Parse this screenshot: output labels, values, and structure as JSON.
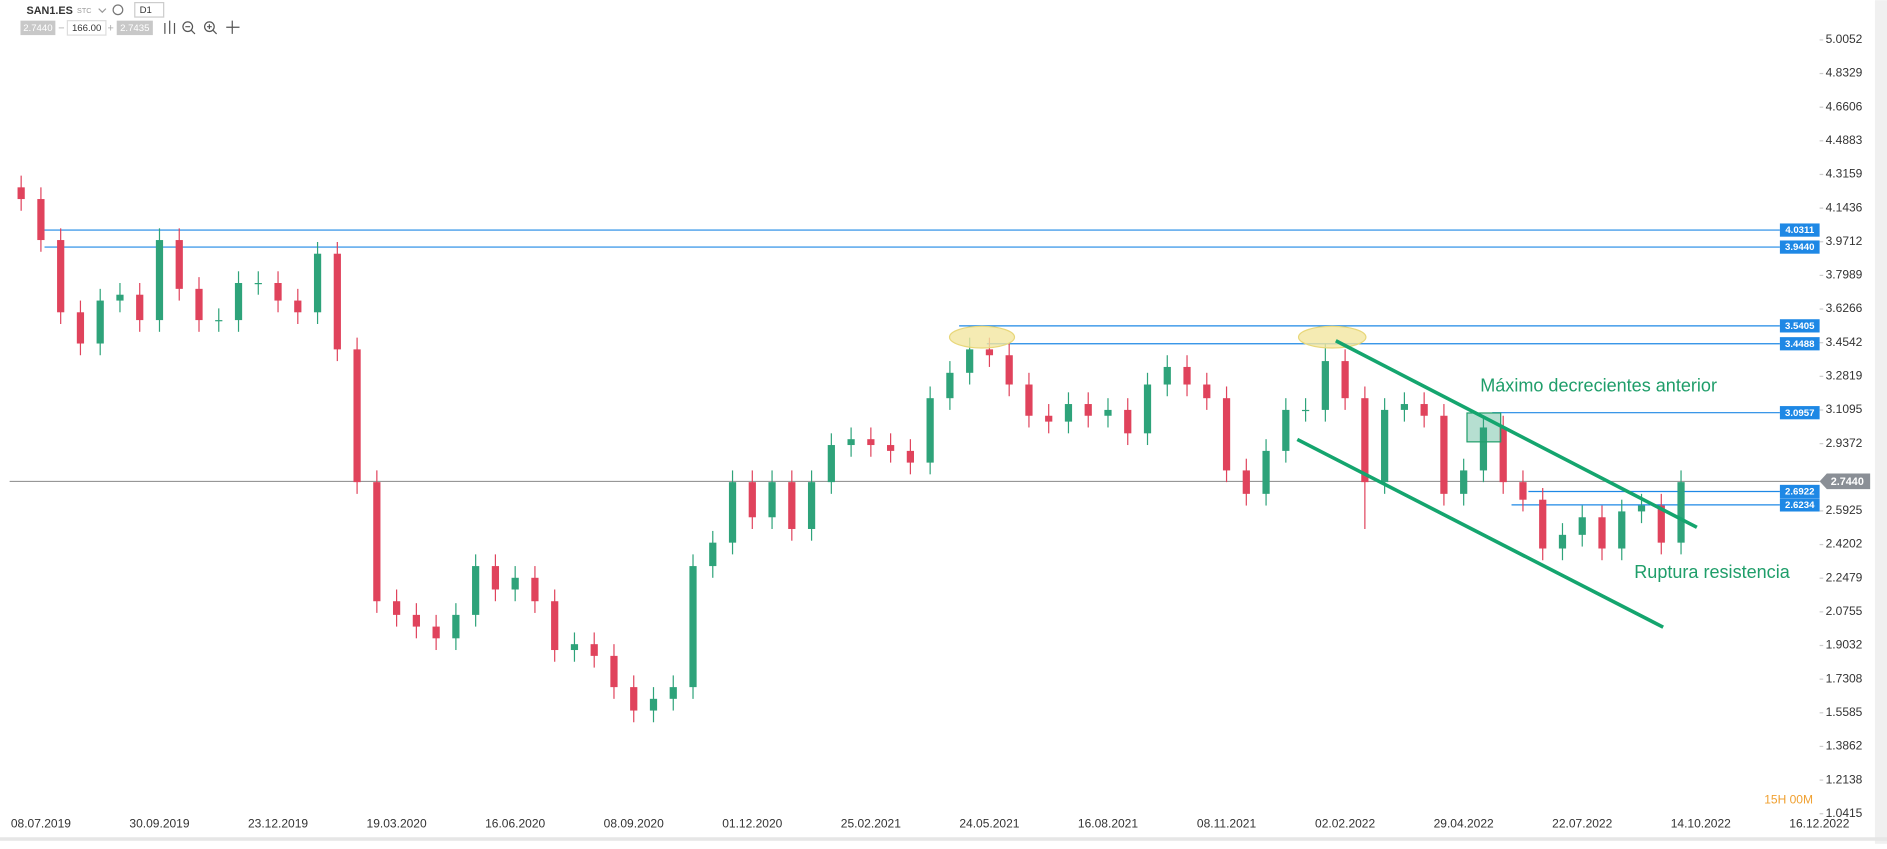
{
  "toolbar": {
    "symbol": "SAN1.ES",
    "market": "STC",
    "interval": "D1",
    "sell": "2.7440",
    "volume": "166.00",
    "buy": "2.7435",
    "countdown": "15H 00M"
  },
  "chart_data": {
    "type": "candlestick",
    "categories": [
      null,
      "08.07.2019",
      null,
      null,
      null,
      null,
      null,
      "30.09.2019",
      null,
      null,
      null,
      null,
      null,
      "23.12.2019",
      null,
      null,
      null,
      null,
      null,
      "19.03.2020",
      null,
      null,
      null,
      null,
      null,
      "16.06.2020",
      null,
      null,
      null,
      null,
      null,
      "08.09.2020",
      null,
      null,
      null,
      null,
      null,
      "01.12.2020",
      null,
      null,
      null,
      null,
      null,
      "25.02.2021",
      null,
      null,
      null,
      null,
      null,
      "24.05.2021",
      null,
      null,
      null,
      null,
      null,
      "16.08.2021",
      null,
      null,
      null,
      null,
      null,
      "08.11.2021",
      null,
      null,
      null,
      null,
      null,
      "02.02.2022",
      null,
      null,
      null,
      null,
      null,
      "29.04.2022",
      null,
      null,
      null,
      null,
      null,
      "22.07.2022",
      null,
      null,
      null,
      null,
      null,
      "14.10.2022",
      null,
      null,
      null,
      null,
      null,
      "16.12.2022"
    ],
    "open": [
      4.25,
      4.19,
      3.98,
      3.61,
      3.45,
      3.67,
      3.7,
      3.57,
      3.98,
      3.73,
      3.57,
      3.57,
      3.76,
      3.76,
      3.67,
      3.61,
      3.91,
      3.42,
      2.74,
      2.13,
      2.06,
      2.0,
      1.94,
      2.06,
      2.31,
      2.19,
      2.25,
      2.13,
      1.88,
      1.91,
      1.85,
      1.69,
      1.57,
      1.63,
      1.69,
      2.31,
      2.43,
      2.74,
      2.56,
      2.74,
      2.5,
      2.74,
      2.93,
      2.96,
      2.93,
      2.9,
      2.84,
      3.17,
      3.3,
      3.42,
      3.39,
      3.24,
      3.08,
      3.05,
      3.14,
      3.08,
      3.11,
      2.99,
      3.24,
      3.33,
      3.24,
      3.17,
      2.8,
      2.68,
      2.9,
      3.11,
      3.11,
      3.36,
      3.17,
      2.74,
      3.11,
      3.14,
      3.08,
      2.68,
      2.8,
      3.02,
      2.74,
      2.65,
      2.4,
      2.47,
      2.56,
      2.4,
      2.59,
      2.62,
      2.43,
      null,
      null,
      null,
      null,
      null,
      null,
      null
    ],
    "high": [
      4.31,
      4.25,
      4.04,
      3.67,
      3.73,
      3.76,
      3.76,
      4.04,
      4.04,
      3.79,
      3.63,
      3.82,
      3.82,
      3.82,
      3.73,
      3.97,
      3.97,
      3.48,
      2.8,
      2.19,
      2.12,
      2.06,
      2.12,
      2.37,
      2.37,
      2.31,
      2.31,
      2.19,
      1.97,
      1.97,
      1.91,
      1.75,
      1.69,
      1.75,
      2.37,
      2.49,
      2.8,
      2.8,
      2.8,
      2.8,
      2.8,
      2.99,
      3.02,
      3.02,
      2.99,
      2.96,
      3.23,
      3.36,
      3.48,
      3.48,
      3.45,
      3.3,
      3.14,
      3.2,
      3.2,
      3.17,
      3.17,
      3.3,
      3.39,
      3.39,
      3.3,
      3.23,
      2.86,
      2.96,
      3.17,
      3.17,
      3.45,
      3.42,
      3.23,
      3.17,
      3.2,
      3.2,
      3.14,
      2.86,
      3.08,
      3.08,
      2.8,
      2.71,
      2.53,
      2.62,
      2.62,
      2.65,
      2.68,
      2.68,
      2.8,
      null,
      null,
      null,
      null,
      null,
      null,
      null
    ],
    "low": [
      4.13,
      3.92,
      3.55,
      3.39,
      3.39,
      3.61,
      3.51,
      3.51,
      3.67,
      3.51,
      3.51,
      3.51,
      3.7,
      3.61,
      3.55,
      3.55,
      3.36,
      2.68,
      2.07,
      2.0,
      1.94,
      1.88,
      1.88,
      2.0,
      2.13,
      2.13,
      2.07,
      1.82,
      1.82,
      1.79,
      1.63,
      1.51,
      1.51,
      1.57,
      1.63,
      2.25,
      2.37,
      2.5,
      2.5,
      2.44,
      2.44,
      2.68,
      2.87,
      2.87,
      2.84,
      2.78,
      2.78,
      3.11,
      3.24,
      3.33,
      3.18,
      3.02,
      2.99,
      2.99,
      3.02,
      3.02,
      2.93,
      2.93,
      3.18,
      3.18,
      3.11,
      2.74,
      2.62,
      2.62,
      2.84,
      3.05,
      3.05,
      3.11,
      2.5,
      2.68,
      3.05,
      3.02,
      2.62,
      2.62,
      2.74,
      2.68,
      2.59,
      2.34,
      2.34,
      2.41,
      2.34,
      2.34,
      2.53,
      2.37,
      2.37,
      null,
      null,
      null,
      null,
      null,
      null,
      null
    ],
    "close": [
      4.19,
      3.98,
      3.61,
      3.45,
      3.67,
      3.7,
      3.57,
      3.98,
      3.73,
      3.57,
      3.57,
      3.76,
      3.76,
      3.67,
      3.61,
      3.91,
      3.42,
      2.74,
      2.13,
      2.06,
      2.0,
      1.94,
      2.06,
      2.31,
      2.19,
      2.25,
      2.13,
      1.88,
      1.91,
      1.85,
      1.69,
      1.57,
      1.63,
      1.69,
      2.31,
      2.43,
      2.74,
      2.56,
      2.74,
      2.5,
      2.74,
      2.93,
      2.96,
      2.93,
      2.9,
      2.84,
      3.17,
      3.3,
      3.42,
      3.39,
      3.24,
      3.08,
      3.05,
      3.14,
      3.08,
      3.11,
      2.99,
      3.24,
      3.33,
      3.24,
      3.17,
      2.8,
      2.68,
      2.9,
      3.11,
      3.11,
      3.36,
      3.17,
      2.74,
      3.11,
      3.14,
      3.08,
      2.68,
      2.8,
      3.02,
      2.74,
      2.65,
      2.4,
      2.47,
      2.56,
      2.4,
      2.59,
      2.62,
      2.43,
      2.74,
      null,
      null,
      null,
      null,
      null,
      null,
      null
    ],
    "up_color": "#2ea37a",
    "down_color": "#e0435c",
    "ylim": [
      1.0415,
      5.0052
    ],
    "yticks": [
      5.0052,
      4.8329,
      4.6606,
      4.4883,
      4.3159,
      4.1436,
      3.9712,
      3.7989,
      3.6266,
      3.4542,
      3.2819,
      3.1095,
      2.9372,
      2.5925,
      2.4202,
      2.2479,
      2.0755,
      1.9032,
      1.7308,
      1.5585,
      1.3862,
      1.2138,
      1.0415
    ],
    "levels": [
      4.0311,
      {
        "value": 3.944,
        "label": "3.9440"
      },
      3.5405,
      3.4488,
      3.0957,
      2.6922,
      2.6234
    ],
    "level_color": "#1e88e5",
    "last_price": {
      "value": 2.744,
      "label": "2.7440"
    },
    "annotations": [
      "Máximo decrecientes anterior",
      "Ruptura resistencia"
    ]
  }
}
